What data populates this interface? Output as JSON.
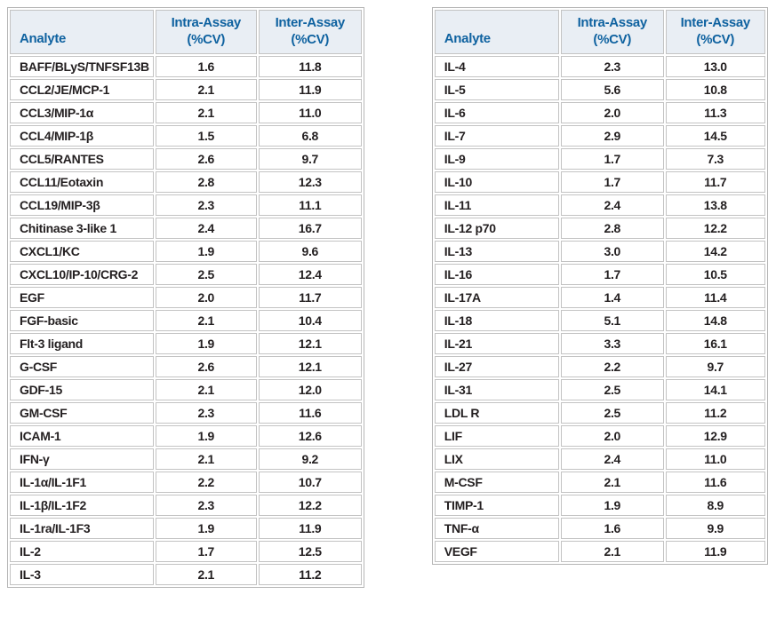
{
  "columns": {
    "analyte": "Analyte",
    "intra": "Intra-Assay",
    "inter": "Inter-Assay",
    "cv": "(%CV)"
  },
  "colors": {
    "header_bg": "#e9eef4",
    "header_text": "#0f62a0",
    "border": "#c3c3c3",
    "outer_border": "#b5b5b5",
    "body_text": "#231f20"
  },
  "tables": [
    {
      "name": "precision-table-left",
      "rows": [
        [
          "BAFF/BLyS/TNFSF13B",
          "1.6",
          "11.8"
        ],
        [
          "CCL2/JE/MCP-1",
          "2.1",
          "11.9"
        ],
        [
          "CCL3/MIP-1α",
          "2.1",
          "11.0"
        ],
        [
          "CCL4/MIP-1β",
          "1.5",
          "6.8"
        ],
        [
          "CCL5/RANTES",
          "2.6",
          "9.7"
        ],
        [
          "CCL11/Eotaxin",
          "2.8",
          "12.3"
        ],
        [
          "CCL19/MIP-3β",
          "2.3",
          "11.1"
        ],
        [
          "Chitinase 3-like 1",
          "2.4",
          "16.7"
        ],
        [
          "CXCL1/KC",
          "1.9",
          "9.6"
        ],
        [
          "CXCL10/IP-10/CRG-2",
          "2.5",
          "12.4"
        ],
        [
          "EGF",
          "2.0",
          "11.7"
        ],
        [
          "FGF-basic",
          "2.1",
          "10.4"
        ],
        [
          "Flt-3 ligand",
          "1.9",
          "12.1"
        ],
        [
          "G-CSF",
          "2.6",
          "12.1"
        ],
        [
          "GDF-15",
          "2.1",
          "12.0"
        ],
        [
          "GM-CSF",
          "2.3",
          "11.6"
        ],
        [
          "ICAM-1",
          "1.9",
          "12.6"
        ],
        [
          "IFN-γ",
          "2.1",
          "9.2"
        ],
        [
          "IL-1α/IL-1F1",
          "2.2",
          "10.7"
        ],
        [
          "IL-1β/IL-1F2",
          "2.3",
          "12.2"
        ],
        [
          "IL-1ra/IL-1F3",
          "1.9",
          "11.9"
        ],
        [
          "IL-2",
          "1.7",
          "12.5"
        ],
        [
          "IL-3",
          "2.1",
          "11.2"
        ]
      ]
    },
    {
      "name": "precision-table-right",
      "rows": [
        [
          "IL-4",
          "2.3",
          "13.0"
        ],
        [
          "IL-5",
          "5.6",
          "10.8"
        ],
        [
          "IL-6",
          "2.0",
          "11.3"
        ],
        [
          "IL-7",
          "2.9",
          "14.5"
        ],
        [
          "IL-9",
          "1.7",
          "7.3"
        ],
        [
          "IL-10",
          "1.7",
          "11.7"
        ],
        [
          "IL-11",
          "2.4",
          "13.8"
        ],
        [
          "IL-12 p70",
          "2.8",
          "12.2"
        ],
        [
          "IL-13",
          "3.0",
          "14.2"
        ],
        [
          "IL-16",
          "1.7",
          "10.5"
        ],
        [
          "IL-17A",
          "1.4",
          "11.4"
        ],
        [
          "IL-18",
          "5.1",
          "14.8"
        ],
        [
          "IL-21",
          "3.3",
          "16.1"
        ],
        [
          "IL-27",
          "2.2",
          "9.7"
        ],
        [
          "IL-31",
          "2.5",
          "14.1"
        ],
        [
          "LDL R",
          "2.5",
          "11.2"
        ],
        [
          "LIF",
          "2.0",
          "12.9"
        ],
        [
          "LIX",
          "2.4",
          "11.0"
        ],
        [
          "M-CSF",
          "2.1",
          "11.6"
        ],
        [
          "TIMP-1",
          "1.9",
          "8.9"
        ],
        [
          "TNF-α",
          "1.6",
          "9.9"
        ],
        [
          "VEGF",
          "2.1",
          "11.9"
        ]
      ]
    }
  ]
}
